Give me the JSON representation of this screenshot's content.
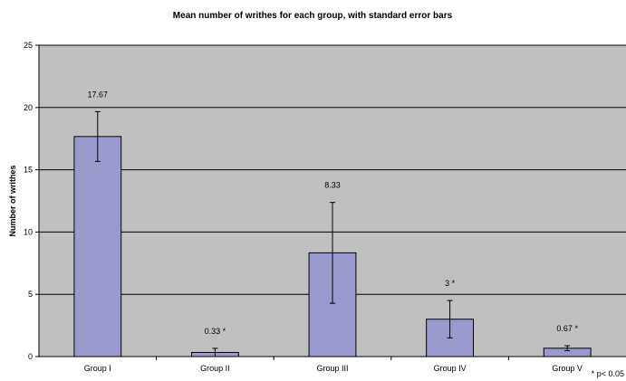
{
  "chart_data": {
    "type": "bar",
    "title": "Mean number of writhes for each group, with standard error bars",
    "xlabel": "",
    "ylabel": "Number of writhes",
    "categories": [
      "Group I",
      "Group II",
      "Group III",
      "Group IV",
      "Group V"
    ],
    "values": [
      17.67,
      0.33,
      8.33,
      3,
      0.67
    ],
    "error": [
      2.0,
      0.33,
      4.05,
      1.5,
      0.2
    ],
    "data_labels": [
      "17.67",
      "0.33 *",
      "8.33",
      "3 *",
      "0.67 *"
    ],
    "ylim": [
      0,
      25
    ],
    "yticks": [
      0,
      5,
      10,
      15,
      20,
      25
    ],
    "grid": true,
    "footnote": "* p< 0.05",
    "colors": {
      "bar_fill": "#9999cc",
      "bar_stroke": "#000000",
      "plot_background": "#c0c0c0",
      "grid": "#000000"
    }
  }
}
